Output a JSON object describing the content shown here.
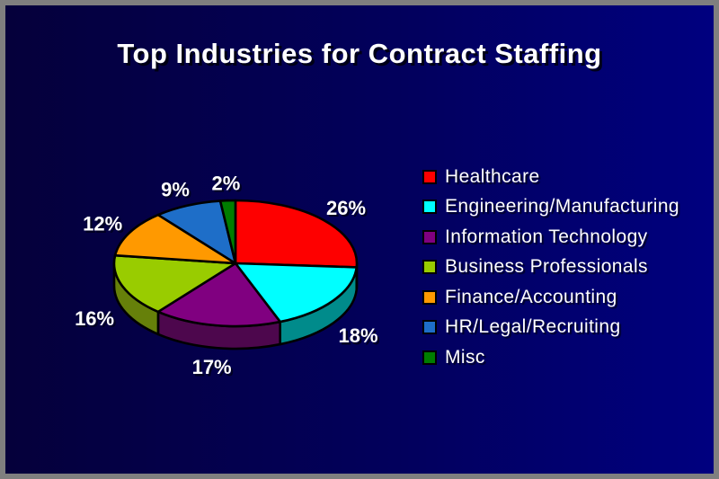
{
  "slide": {
    "title": "Top Industries for Contract Staffing"
  },
  "chart_data": {
    "type": "pie",
    "title": "Top Industries for Contract Staffing",
    "style": "3d-pie",
    "start_angle_deg": 0,
    "direction": "clockwise",
    "data_labels": "percent-outside",
    "legend_position": "right",
    "slices": [
      {
        "label": "Healthcare",
        "value_pct": 26,
        "color": "#fe0000",
        "side_color": "#8b0000"
      },
      {
        "label": "Engineering/Manufacturing",
        "value_pct": 18,
        "color": "#00ffff",
        "side_color": "#008b8b"
      },
      {
        "label": "Information Technology",
        "value_pct": 17,
        "color": "#800080",
        "side_color": "#4d074d"
      },
      {
        "label": "Business Professionals",
        "value_pct": 16,
        "color": "#99cc00",
        "side_color": "#66800a"
      },
      {
        "label": "Finance/Accounting",
        "value_pct": 12,
        "color": "#ff9900",
        "side_color": "#8b5a00"
      },
      {
        "label": "HR/Legal/Recruiting",
        "value_pct": 9,
        "color": "#1e6ec8",
        "side_color": "#104a8b"
      },
      {
        "label": "Misc",
        "value_pct": 2,
        "color": "#007d00",
        "side_color": "#004d00"
      }
    ]
  },
  "colors": {
    "background_left": "#05003a",
    "background_right": "#000080",
    "frame": "#7f7f7f",
    "text": "#ffffff",
    "outline": "#000000"
  }
}
